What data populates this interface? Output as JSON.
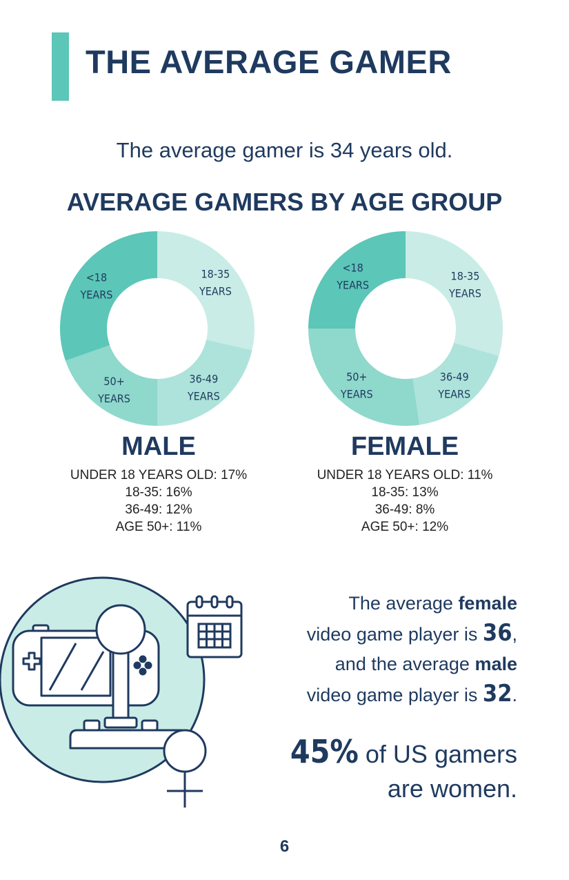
{
  "page": {
    "title": "THE AVERAGE GAMER",
    "intro": "The average gamer is 34 years old.",
    "section_title": "AVERAGE GAMERS BY AGE GROUP",
    "page_number": "6"
  },
  "colors": {
    "accent": "#5cc6b8",
    "navy": "#1f3a5f",
    "seg_under18": "#5cc6b8",
    "seg_18_35": "#c9ece6",
    "seg_36_49": "#ade3da",
    "seg_50plus": "#8fd8cc",
    "illus_circle": "#c9ece6"
  },
  "chart_data": [
    {
      "type": "pie",
      "title": "MALE",
      "categories": [
        "<18 YEARS",
        "18-35 YEARS",
        "36-49 YEARS",
        "50+ YEARS"
      ],
      "values": [
        17,
        16,
        12,
        11
      ],
      "stats": [
        "UNDER 18 YEARS OLD: 17%",
        "18-35: 16%",
        "36-49: 12%",
        "AGE 50+: 11%"
      ]
    },
    {
      "type": "pie",
      "title": "FEMALE",
      "categories": [
        "<18 YEARS",
        "18-35 YEARS",
        "36-49 YEARS",
        "50+ YEARS"
      ],
      "values": [
        11,
        13,
        8,
        12
      ],
      "stats": [
        "UNDER 18 YEARS OLD: 11%",
        "18-35: 13%",
        "36-49: 8%",
        "AGE 50+: 12%"
      ]
    }
  ],
  "facts": {
    "f1_a": "The average ",
    "f1_b": "female",
    "f1_c": "video game player is ",
    "f1_d": "36",
    "f1_e": ",",
    "f1_f": "and the average ",
    "f1_g": "male",
    "f1_h": "video game player is ",
    "f1_i": "32",
    "f1_j": ".",
    "f2_a": "45%",
    "f2_b": " of US gamers",
    "f2_c": "are women."
  },
  "icons": [
    "game-console-icon",
    "joystick-icon",
    "calendar-icon",
    "female-symbol-icon"
  ]
}
